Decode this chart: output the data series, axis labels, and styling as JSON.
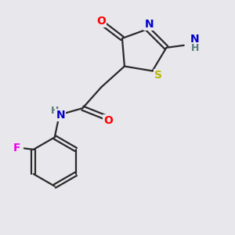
{
  "bg_color": "#e8e8ec",
  "bond_color": "#2a2a2a",
  "bond_width": 1.6,
  "atom_colors": {
    "O": "#ff0000",
    "N": "#0000cc",
    "S": "#b8b800",
    "F": "#ee00ee",
    "H_label": "#5a7a7a"
  },
  "font_size_atom": 10,
  "font_size_sub": 8
}
